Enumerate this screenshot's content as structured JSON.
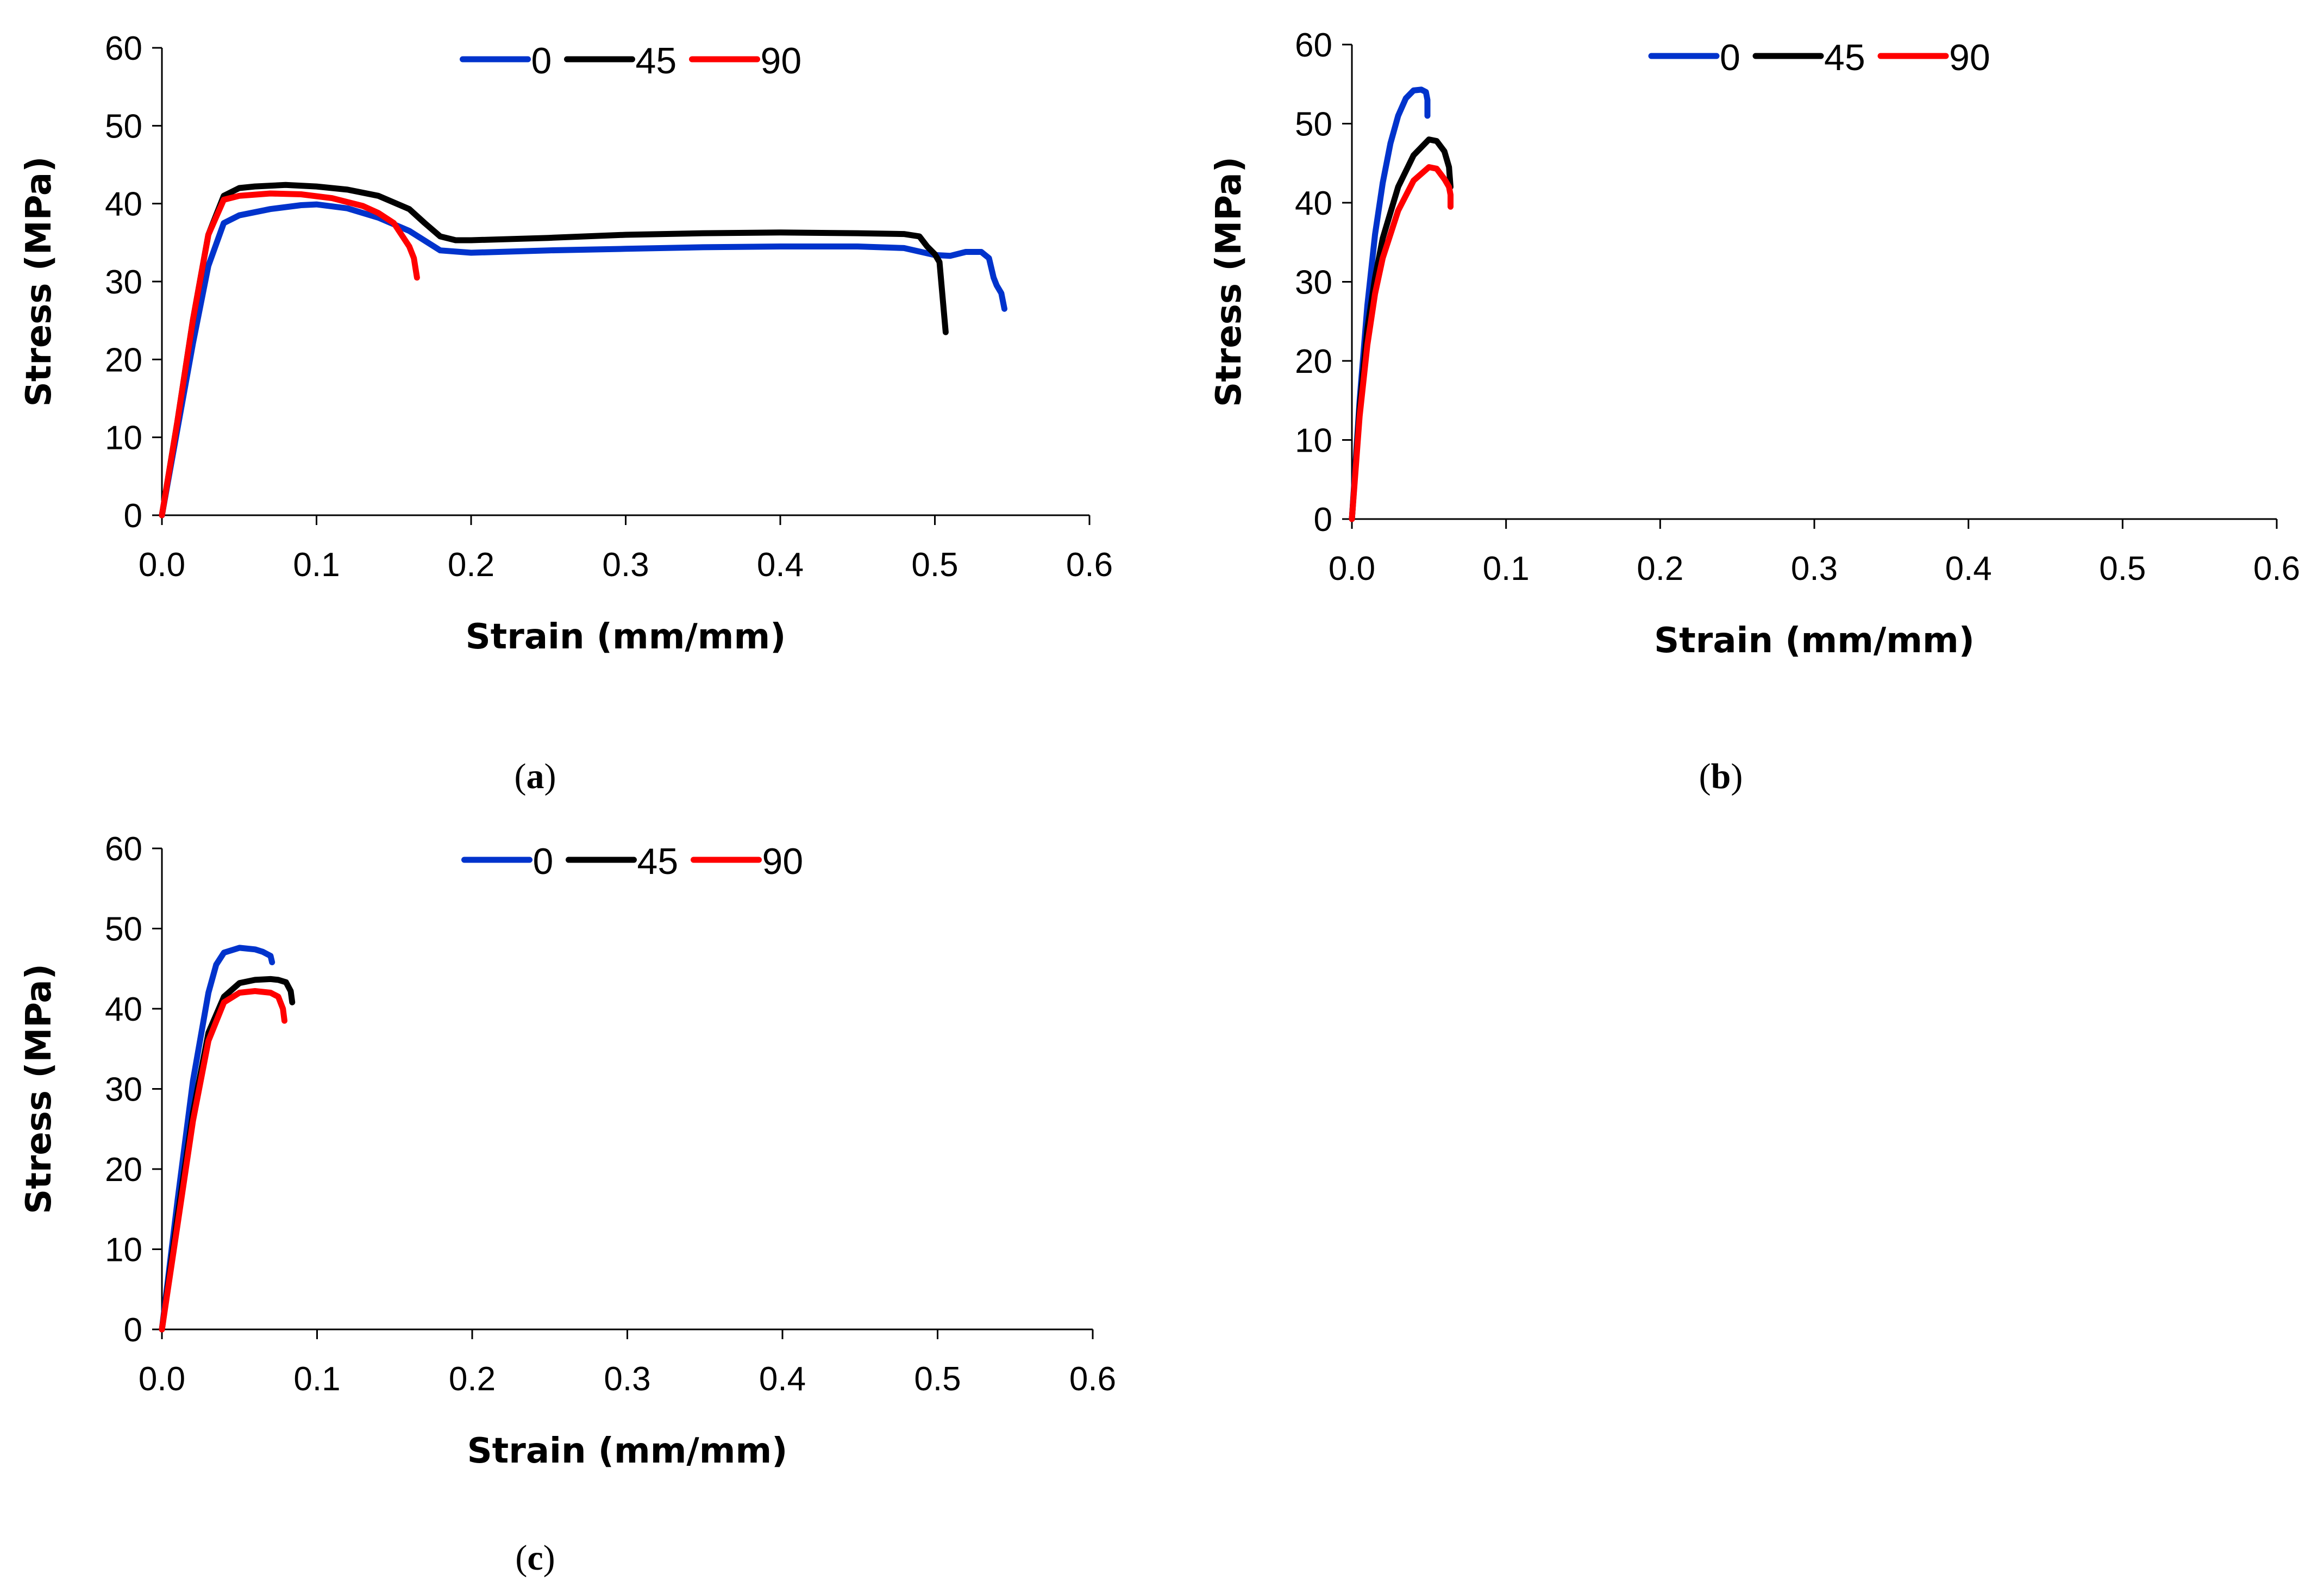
{
  "chart_data": [
    {
      "type": "line",
      "panel_label": {
        "open": "(",
        "letter": "a",
        "close": ")"
      },
      "title": "",
      "xlabel": "Strain (mm/mm)",
      "ylabel": "Stress (MPa)",
      "xlim": [
        0.0,
        0.6
      ],
      "ylim": [
        0,
        60
      ],
      "xticks": [
        "0.0",
        "0.1",
        "0.2",
        "0.3",
        "0.4",
        "0.5",
        "0.6"
      ],
      "yticks": [
        "0",
        "10",
        "20",
        "30",
        "40",
        "50",
        "60"
      ],
      "grid": false,
      "legend_position": "top-center",
      "series": [
        {
          "name": "0",
          "color": "#0033cc",
          "x": [
            0.0,
            0.01,
            0.02,
            0.03,
            0.04,
            0.05,
            0.07,
            0.09,
            0.1,
            0.12,
            0.14,
            0.16,
            0.18,
            0.2,
            0.25,
            0.3,
            0.35,
            0.4,
            0.45,
            0.48,
            0.5,
            0.51,
            0.52,
            0.53,
            0.535,
            0.538,
            0.54,
            0.543,
            0.545
          ],
          "y": [
            0,
            11,
            22,
            32,
            37.5,
            38.5,
            39.3,
            39.8,
            39.9,
            39.4,
            38.2,
            36.5,
            34.0,
            33.7,
            34.0,
            34.2,
            34.4,
            34.5,
            34.5,
            34.3,
            33.4,
            33.3,
            33.8,
            33.8,
            33.0,
            30.5,
            29.5,
            28.5,
            26.5
          ]
        },
        {
          "name": "45",
          "color": "#000000",
          "x": [
            0.0,
            0.01,
            0.02,
            0.03,
            0.04,
            0.05,
            0.06,
            0.08,
            0.1,
            0.12,
            0.14,
            0.16,
            0.17,
            0.18,
            0.19,
            0.2,
            0.25,
            0.3,
            0.35,
            0.4,
            0.45,
            0.48,
            0.49,
            0.495,
            0.5,
            0.503,
            0.505,
            0.507
          ],
          "y": [
            0,
            12,
            25,
            36,
            41.0,
            42.0,
            42.2,
            42.4,
            42.2,
            41.8,
            41.0,
            39.3,
            37.5,
            35.8,
            35.3,
            35.3,
            35.6,
            36.0,
            36.2,
            36.3,
            36.2,
            36.1,
            35.8,
            34.5,
            33.5,
            32.5,
            28.0,
            23.5
          ]
        },
        {
          "name": "90",
          "color": "#ff0000",
          "x": [
            0.0,
            0.01,
            0.02,
            0.03,
            0.04,
            0.05,
            0.07,
            0.09,
            0.11,
            0.13,
            0.14,
            0.15,
            0.155,
            0.16,
            0.163,
            0.165
          ],
          "y": [
            0,
            12,
            25,
            36,
            40.5,
            41.0,
            41.3,
            41.2,
            40.7,
            39.7,
            38.8,
            37.5,
            36.0,
            34.5,
            33.0,
            30.5
          ]
        }
      ]
    },
    {
      "type": "line",
      "panel_label": {
        "open": "(",
        "letter": "b",
        "close": ")"
      },
      "title": "",
      "xlabel": "Strain (mm/mm)",
      "ylabel": "Stress (MPa)",
      "xlim": [
        0.0,
        0.6
      ],
      "ylim": [
        0,
        60
      ],
      "xticks": [
        "0.0",
        "0.1",
        "0.2",
        "0.3",
        "0.4",
        "0.5",
        "0.6"
      ],
      "yticks": [
        "0",
        "10",
        "20",
        "30",
        "40",
        "50",
        "60"
      ],
      "grid": false,
      "legend_position": "top-center",
      "series": [
        {
          "name": "0",
          "color": "#0033cc",
          "x": [
            0.0,
            0.005,
            0.01,
            0.015,
            0.02,
            0.025,
            0.03,
            0.035,
            0.04,
            0.045,
            0.048,
            0.049,
            0.049
          ],
          "y": [
            0,
            15,
            27,
            36,
            42.5,
            47.5,
            51.0,
            53.2,
            54.2,
            54.3,
            54.0,
            53.0,
            51.0
          ]
        },
        {
          "name": "45",
          "color": "#000000",
          "x": [
            0.0,
            0.005,
            0.01,
            0.015,
            0.02,
            0.03,
            0.04,
            0.05,
            0.055,
            0.06,
            0.063,
            0.064
          ],
          "y": [
            0,
            14,
            24,
            30.5,
            35.5,
            42.0,
            46.0,
            48.0,
            47.8,
            46.5,
            44.5,
            42.0
          ]
        },
        {
          "name": "90",
          "color": "#ff0000",
          "x": [
            0.0,
            0.005,
            0.01,
            0.015,
            0.02,
            0.03,
            0.04,
            0.05,
            0.055,
            0.06,
            0.063,
            0.064,
            0.064
          ],
          "y": [
            0,
            13,
            22,
            28.5,
            33.0,
            39.0,
            42.8,
            44.5,
            44.3,
            43.0,
            42.0,
            41.0,
            39.5
          ]
        }
      ]
    },
    {
      "type": "line",
      "panel_label": {
        "open": "(",
        "letter": "c",
        "close": ")"
      },
      "title": "",
      "xlabel": "Strain (mm/mm)",
      "ylabel": "Stress (MPa)",
      "xlim": [
        0.0,
        0.6
      ],
      "ylim": [
        0,
        60
      ],
      "xticks": [
        "0.0",
        "0.1",
        "0.2",
        "0.3",
        "0.4",
        "0.5",
        "0.6"
      ],
      "yticks": [
        "0",
        "10",
        "20",
        "30",
        "40",
        "50",
        "60"
      ],
      "grid": false,
      "legend_position": "top-center",
      "series": [
        {
          "name": "0",
          "color": "#0033cc",
          "x": [
            0.0,
            0.01,
            0.02,
            0.03,
            0.035,
            0.04,
            0.05,
            0.06,
            0.065,
            0.07,
            0.071
          ],
          "y": [
            0,
            16,
            31,
            42,
            45.5,
            47.0,
            47.6,
            47.4,
            47.1,
            46.6,
            45.8
          ]
        },
        {
          "name": "45",
          "color": "#000000",
          "x": [
            0.0,
            0.01,
            0.02,
            0.03,
            0.04,
            0.05,
            0.06,
            0.07,
            0.075,
            0.08,
            0.083,
            0.084
          ],
          "y": [
            0,
            14,
            27,
            37,
            41.5,
            43.2,
            43.6,
            43.7,
            43.6,
            43.3,
            42.2,
            40.8
          ]
        },
        {
          "name": "90",
          "color": "#ff0000",
          "x": [
            0.0,
            0.01,
            0.02,
            0.03,
            0.04,
            0.05,
            0.06,
            0.07,
            0.075,
            0.078,
            0.079
          ],
          "y": [
            0,
            13,
            26,
            36,
            40.8,
            42.0,
            42.2,
            42.0,
            41.5,
            40.0,
            38.5
          ]
        }
      ]
    }
  ]
}
